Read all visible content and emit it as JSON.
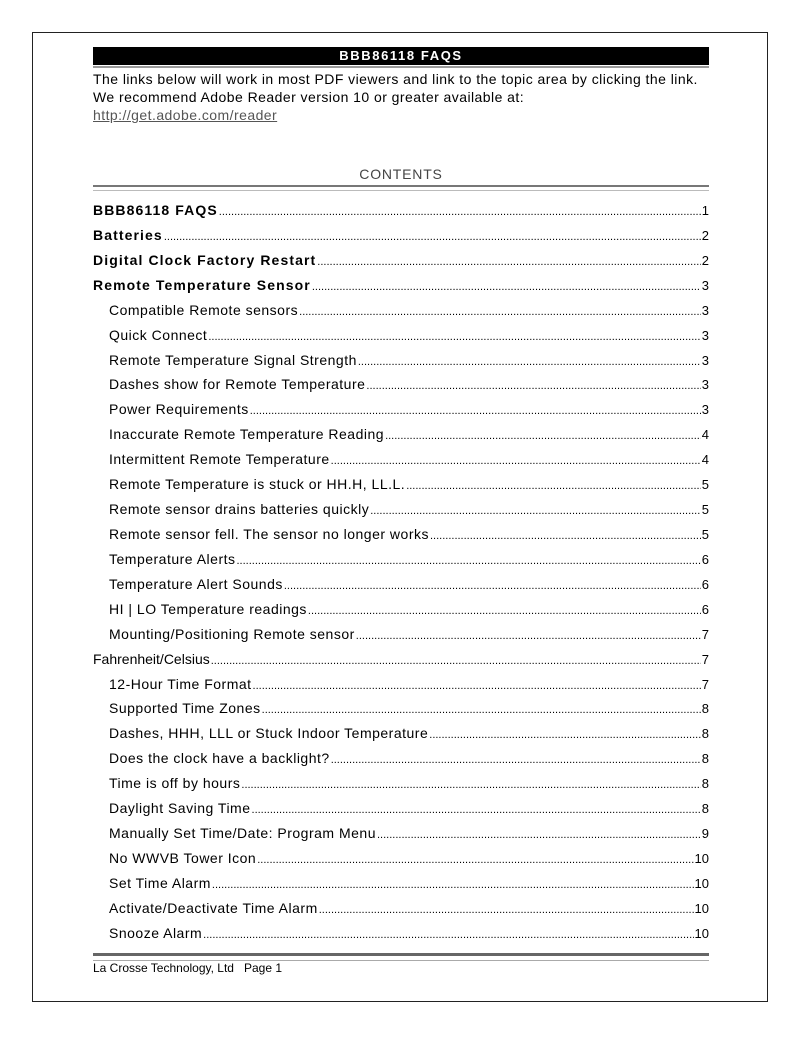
{
  "header": {
    "title": "BBB86118 FAQS"
  },
  "intro": {
    "text": "The links below will work in most PDF viewers and link to the topic area by clicking the link. We recommend Adobe Reader version 10 or greater available at:",
    "link": "http://get.adobe.com/reader"
  },
  "contents_heading": "CONTENTS",
  "toc": [
    {
      "label": "BBB86118 FAQS",
      "page": "1",
      "level": 1,
      "bold": true
    },
    {
      "label": "Batteries",
      "page": "2",
      "level": 1,
      "bold": true
    },
    {
      "label": "Digital Clock Factory Restart",
      "page": "2",
      "level": 1,
      "bold": true
    },
    {
      "label": "Remote Temperature Sensor",
      "page": "3",
      "level": 1,
      "bold": true
    },
    {
      "label": "Compatible Remote sensors",
      "page": "3",
      "level": 2
    },
    {
      "label": "Quick Connect",
      "page": "3",
      "level": 2
    },
    {
      "label": "Remote Temperature Signal Strength",
      "page": "3",
      "level": 2
    },
    {
      "label": "Dashes show for Remote Temperature",
      "page": "3",
      "level": 2
    },
    {
      "label": "Power Requirements",
      "page": "3",
      "level": 2
    },
    {
      "label": "Inaccurate Remote Temperature Reading",
      "page": "4",
      "level": 2
    },
    {
      "label": "Intermittent Remote Temperature",
      "page": "4",
      "level": 2
    },
    {
      "label": "Remote Temperature is stuck or HH.H, LL.L.",
      "page": "5",
      "level": 2
    },
    {
      "label": "Remote sensor drains batteries quickly",
      "page": "5",
      "level": 2
    },
    {
      "label": "Remote sensor fell. The sensor no longer works",
      "page": "5",
      "level": 2
    },
    {
      "label": "Temperature Alerts",
      "page": "6",
      "level": 2
    },
    {
      "label": "Temperature Alert Sounds",
      "page": "6",
      "level": 2
    },
    {
      "label": "HI | LO Temperature readings",
      "page": "6",
      "level": 2
    },
    {
      "label": "Mounting/Positioning Remote sensor",
      "page": "7",
      "level": 2
    },
    {
      "label": "Fahrenheit/Celsius",
      "page": "7",
      "level": 1,
      "bold": false
    },
    {
      "label": "12-Hour Time Format",
      "page": "7",
      "level": 2
    },
    {
      "label": "Supported Time Zones",
      "page": "8",
      "level": 2
    },
    {
      "label": "Dashes, HHH, LLL or Stuck Indoor Temperature",
      "page": "8",
      "level": 2
    },
    {
      "label": "Does the clock have a backlight?",
      "page": "8",
      "level": 2
    },
    {
      "label": "Time is off by hours",
      "page": "8",
      "level": 2
    },
    {
      "label": "Daylight Saving Time",
      "page": "8",
      "level": 2
    },
    {
      "label": "Manually Set Time/Date: Program Menu",
      "page": "9",
      "level": 2
    },
    {
      "label": "No WWVB Tower Icon",
      "page": "10",
      "level": 2
    },
    {
      "label": "Set Time Alarm",
      "page": "10",
      "level": 2
    },
    {
      "label": "Activate/Deactivate Time Alarm",
      "page": "10",
      "level": 2
    },
    {
      "label": "Snooze Alarm",
      "page": "10",
      "level": 2
    }
  ],
  "footer": {
    "text": "La Crosse Technology, Ltd   Page 1"
  }
}
